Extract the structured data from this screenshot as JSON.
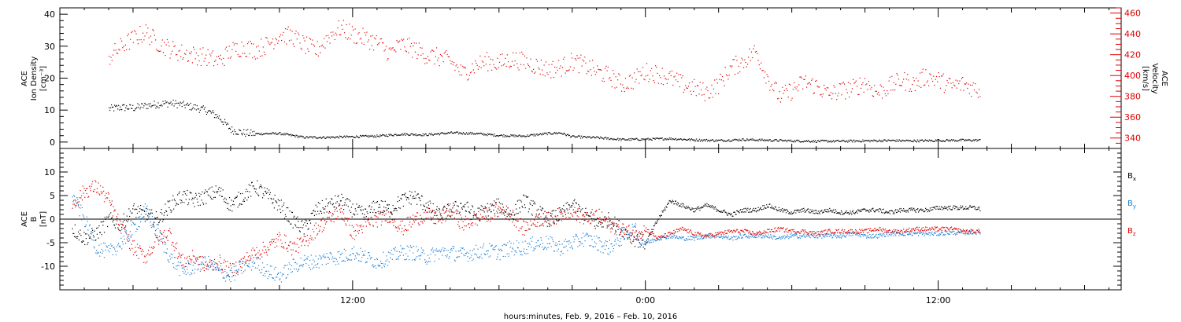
{
  "chart_data": [
    {
      "type": "scatter",
      "panel": "ACE ion density / velocity",
      "ylabel_left": [
        "ACE",
        "Ion Density",
        "[cm⁻³]"
      ],
      "ylabel_right": [
        "ACE",
        "Velocity",
        "[km/s]"
      ],
      "ylim_left": [
        -2,
        42
      ],
      "ylim_right": [
        330,
        465
      ],
      "yticks_left": [
        0,
        10,
        20,
        30,
        40
      ],
      "yticks_right": [
        340,
        360,
        380,
        400,
        420,
        440,
        460
      ],
      "colors": {
        "density": "#000000",
        "velocity": "#e00000"
      },
      "series": [
        {
          "axis": "left",
          "color": "#000000",
          "x": [
            2.0,
            2.5,
            3.0,
            3.5,
            4.0,
            4.5,
            5.0,
            5.5,
            6.0,
            6.5,
            7.0,
            7.5,
            8.0,
            9.0,
            10.0,
            11.0,
            12.0,
            13.0,
            14.0,
            15.0,
            16.0,
            17.0,
            18.0,
            19.0,
            20.0,
            20.5,
            21.0,
            22.0,
            23.0,
            24.0,
            25.0,
            26.0,
            27.0,
            28.0,
            29.0,
            30.0,
            31.0,
            32.0,
            33.0,
            34.0,
            35.0,
            36.0,
            37.0,
            37.7
          ],
          "y": [
            10.5,
            11,
            10.8,
            11.5,
            12,
            12.3,
            11.8,
            11,
            10,
            8,
            4,
            3,
            2.7,
            2.8,
            1.6,
            1.6,
            1.8,
            2.0,
            2.6,
            2.4,
            3.0,
            2.8,
            2.2,
            2.0,
            2.8,
            3.0,
            1.8,
            1.5,
            0.9,
            1.0,
            1.2,
            0.8,
            0.6,
            0.9,
            0.7,
            0.5,
            0.4,
            0.4,
            0.5,
            0.6,
            0.5,
            0.6,
            0.7,
            0.7
          ]
        },
        {
          "axis": "right",
          "color": "#e00000",
          "x": [
            2.0,
            2.5,
            3.0,
            3.5,
            4.0,
            4.5,
            5.0,
            5.5,
            6.0,
            6.5,
            7.0,
            7.5,
            8.0,
            8.5,
            9.0,
            9.5,
            10.0,
            10.5,
            11.0,
            11.5,
            12.0,
            12.5,
            13.0,
            13.5,
            14.0,
            14.5,
            15.0,
            15.5,
            16.0,
            16.5,
            17.0,
            17.5,
            18.0,
            18.5,
            19.0,
            19.5,
            20.0,
            20.5,
            21.0,
            21.5,
            22.0,
            22.5,
            23.0,
            23.5,
            24.0,
            24.5,
            25.0,
            25.5,
            26.0,
            26.5,
            27.0,
            27.5,
            28.0,
            28.5,
            29.0,
            29.5,
            30.0,
            30.5,
            31.0,
            31.5,
            32.0,
            32.5,
            33.0,
            33.5,
            34.0,
            34.5,
            35.0,
            35.5,
            36.0,
            36.5,
            37.0,
            37.5,
            37.7
          ],
          "y": [
            418,
            428,
            436,
            442,
            432,
            426,
            422,
            420,
            418,
            414,
            424,
            428,
            425,
            430,
            440,
            438,
            430,
            424,
            438,
            446,
            440,
            436,
            432,
            422,
            430,
            426,
            420,
            418,
            414,
            402,
            410,
            414,
            412,
            416,
            414,
            410,
            406,
            408,
            414,
            410,
            404,
            400,
            392,
            396,
            404,
            402,
            398,
            392,
            388,
            384,
            392,
            408,
            414,
            424,
            398,
            380,
            386,
            394,
            390,
            382,
            386,
            388,
            394,
            384,
            390,
            396,
            392,
            400,
            396,
            390,
            392,
            388,
            386
          ]
        }
      ]
    },
    {
      "type": "scatter",
      "panel": "ACE magnetic field",
      "ylabel_left": [
        "ACE",
        "B",
        "[nT]"
      ],
      "ylim": [
        -15,
        15
      ],
      "yticks": [
        -10,
        -5,
        0,
        5,
        10
      ],
      "zero_line": true,
      "legend_placement": "right",
      "series": [
        {
          "name": "B_x",
          "color": "#000000",
          "x": [
            0.5,
            1.0,
            1.5,
            2.0,
            2.5,
            3.0,
            3.5,
            4.0,
            4.5,
            5.0,
            5.5,
            6.0,
            6.5,
            7.0,
            7.5,
            8.0,
            8.5,
            9.0,
            9.5,
            10.0,
            10.5,
            11.0,
            11.5,
            12.0,
            12.5,
            13.0,
            13.5,
            14.0,
            14.5,
            15.0,
            15.5,
            16.0,
            16.5,
            17.0,
            17.5,
            18.0,
            18.5,
            19.0,
            19.5,
            20.0,
            20.5,
            21.0,
            21.5,
            22.0,
            22.5,
            23.0,
            23.5,
            24.0,
            24.5,
            25.0,
            25.5,
            26.0,
            26.5,
            27.0,
            27.5,
            28.0,
            28.5,
            29.0,
            29.5,
            30.0,
            30.5,
            31.0,
            31.5,
            32.0,
            32.5,
            33.0,
            33.5,
            34.0,
            34.5,
            35.0,
            35.5,
            36.0,
            36.5,
            37.0,
            37.5,
            37.7
          ],
          "y": [
            -2,
            -4,
            -3,
            0,
            -1,
            2,
            1,
            0,
            3,
            5,
            4,
            5,
            6,
            3,
            5,
            7,
            5,
            3,
            0,
            -2,
            2,
            3,
            4,
            2,
            1,
            3,
            2,
            4,
            5,
            3,
            1,
            2,
            3,
            1,
            2,
            3,
            1,
            4,
            2,
            0,
            1,
            3,
            1,
            -1,
            0,
            -2,
            -4,
            -5,
            0,
            4,
            3,
            2,
            3,
            2,
            1,
            2,
            2,
            3,
            2,
            1.5,
            2,
            1.5,
            2,
            1.5,
            1.5,
            2,
            2,
            1.5,
            2,
            2,
            2,
            2.5,
            2.5,
            2.5,
            2.5,
            2.2
          ]
        },
        {
          "name": "B_y",
          "color": "#1a7fd4",
          "x": [
            0.5,
            1.0,
            1.5,
            2.0,
            2.5,
            3.0,
            3.5,
            4.0,
            4.5,
            5.0,
            5.5,
            6.0,
            6.5,
            7.0,
            7.5,
            8.0,
            8.5,
            9.0,
            9.5,
            10.0,
            10.5,
            11.0,
            11.5,
            12.0,
            12.5,
            13.0,
            13.5,
            14.0,
            14.5,
            15.0,
            15.5,
            16.0,
            16.5,
            17.0,
            17.5,
            18.0,
            18.5,
            19.0,
            19.5,
            20.0,
            20.5,
            21.0,
            21.5,
            22.0,
            22.5,
            23.0,
            23.5,
            24.0,
            24.5,
            25.0,
            25.5,
            26.0,
            26.5,
            27.0,
            27.5,
            28.0,
            28.5,
            29.0,
            29.5,
            30.0,
            30.5,
            31.0,
            31.5,
            32.0,
            32.5,
            33.0,
            33.5,
            34.0,
            34.5,
            35.0,
            35.5,
            36.0,
            36.5,
            37.0,
            37.5,
            37.7
          ],
          "y": [
            5,
            0,
            -6,
            -7,
            -5,
            -2,
            2,
            -3,
            -8,
            -11,
            -10,
            -9,
            -11,
            -12,
            -10,
            -9,
            -11,
            -12,
            -10,
            -9,
            -9,
            -8,
            -8,
            -7,
            -8,
            -9,
            -8,
            -7,
            -7,
            -8,
            -7,
            -7,
            -7.5,
            -7,
            -6.5,
            -7,
            -6,
            -6,
            -5,
            -5,
            -6,
            -5,
            -4,
            -5,
            -6,
            -4,
            -2,
            -5,
            -4,
            -3.5,
            -4,
            -4,
            -3.5,
            -3.5,
            -4,
            -3.5,
            -3.5,
            -3.5,
            -4,
            -3.5,
            -3.5,
            -3.5,
            -3.5,
            -3.5,
            -3,
            -3.5,
            -3.5,
            -3,
            -3,
            -3,
            -3,
            -3,
            -2.8,
            -2.8,
            -2.7,
            -2.7
          ]
        },
        {
          "name": "B_z",
          "color": "#e00000",
          "x": [
            0.5,
            1.0,
            1.5,
            2.0,
            2.5,
            3.0,
            3.5,
            4.0,
            4.5,
            5.0,
            5.5,
            6.0,
            6.5,
            7.0,
            7.5,
            8.0,
            8.5,
            9.0,
            9.5,
            10.0,
            10.5,
            11.0,
            11.5,
            12.0,
            12.5,
            13.0,
            13.5,
            14.0,
            14.5,
            15.0,
            15.5,
            16.0,
            16.5,
            17.0,
            17.5,
            18.0,
            18.5,
            19.0,
            19.5,
            20.0,
            20.5,
            21.0,
            21.5,
            22.0,
            22.5,
            23.0,
            23.5,
            24.0,
            24.5,
            25.0,
            25.5,
            26.0,
            26.5,
            27.0,
            27.5,
            28.0,
            28.5,
            29.0,
            29.5,
            30.0,
            30.5,
            31.0,
            31.5,
            32.0,
            32.5,
            33.0,
            33.5,
            34.0,
            34.5,
            35.0,
            35.5,
            36.0,
            36.5,
            37.0,
            37.5,
            37.7
          ],
          "y": [
            3,
            6,
            7,
            4,
            -2,
            -6,
            -8,
            -4,
            -3,
            -9,
            -8,
            -10,
            -9,
            -11,
            -9,
            -7,
            -6,
            -4,
            -6,
            -5,
            -2,
            0,
            2,
            -3,
            -1,
            0,
            1,
            -2,
            0,
            1,
            0,
            2,
            -1,
            0,
            1,
            2,
            1,
            -2,
            0,
            0,
            1,
            2,
            0,
            1,
            -1,
            -2,
            -3,
            -2,
            -4,
            -3,
            -2,
            -3,
            -3.5,
            -3,
            -2.5,
            -2.5,
            -3,
            -2.5,
            -2,
            -2.5,
            -2.5,
            -3,
            -2.5,
            -2.5,
            -2.5,
            -2.5,
            -2,
            -2.5,
            -2.5,
            -2,
            -2,
            -2,
            -2,
            -2.5,
            -2.5,
            -2.5
          ]
        }
      ],
      "legend": [
        {
          "label": "B",
          "sub": "x",
          "color": "#000000"
        },
        {
          "label": "B",
          "sub": "y",
          "color": "#1a7fd4"
        },
        {
          "label": "B",
          "sub": "z",
          "color": "#e00000"
        }
      ]
    }
  ],
  "x_axis": {
    "xlim_hours": [
      0,
      43.5
    ],
    "tick_labels": [
      "12:00",
      "0:00",
      "12:00"
    ],
    "tick_hours": [
      12,
      24,
      36
    ],
    "xlabel": "hours:minutes, Feb.  9, 2016 – Feb. 10, 2016"
  }
}
